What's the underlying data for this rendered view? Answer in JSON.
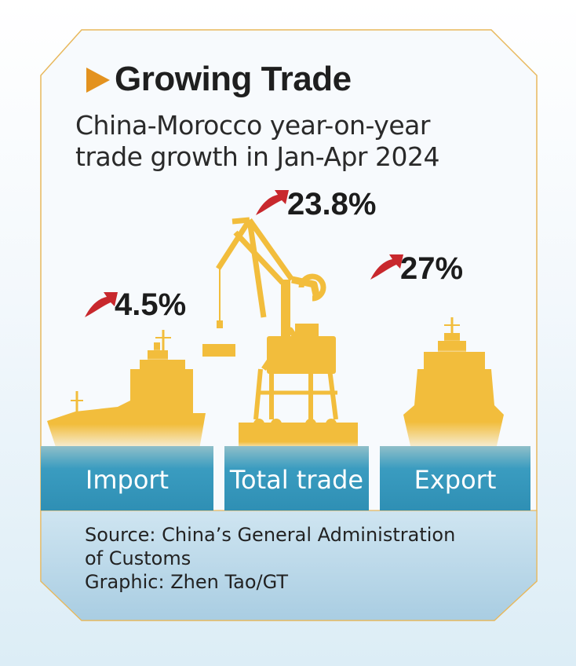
{
  "title": "Growing Trade",
  "subtitle_line1": "China-Morocco year-on-year",
  "subtitle_line2": "trade growth in Jan-Apr 2024",
  "colors": {
    "accent_orange": "#e3921f",
    "ship_yellow": "#f2bd3c",
    "dock_blue": "#3595b8",
    "arrow_red": "#c8282d"
  },
  "icons": [
    "play-triangle-icon",
    "up-arrow-icon",
    "cargo-ship-icon",
    "port-crane-icon"
  ],
  "chart_data": {
    "type": "bar",
    "categories": [
      "Import",
      "Total trade",
      "Export"
    ],
    "values": [
      4.5,
      23.8,
      27
    ],
    "value_labels": [
      "4.5%",
      "23.8%",
      "27%"
    ],
    "title": "Growing Trade",
    "subtitle": "China-Morocco year-on-year trade growth in Jan-Apr 2024",
    "unit": "%"
  },
  "source": {
    "line1": "Source:  China’s General Administration",
    "line2": "of Customs",
    "line3": "Graphic: Zhen Tao/GT"
  }
}
